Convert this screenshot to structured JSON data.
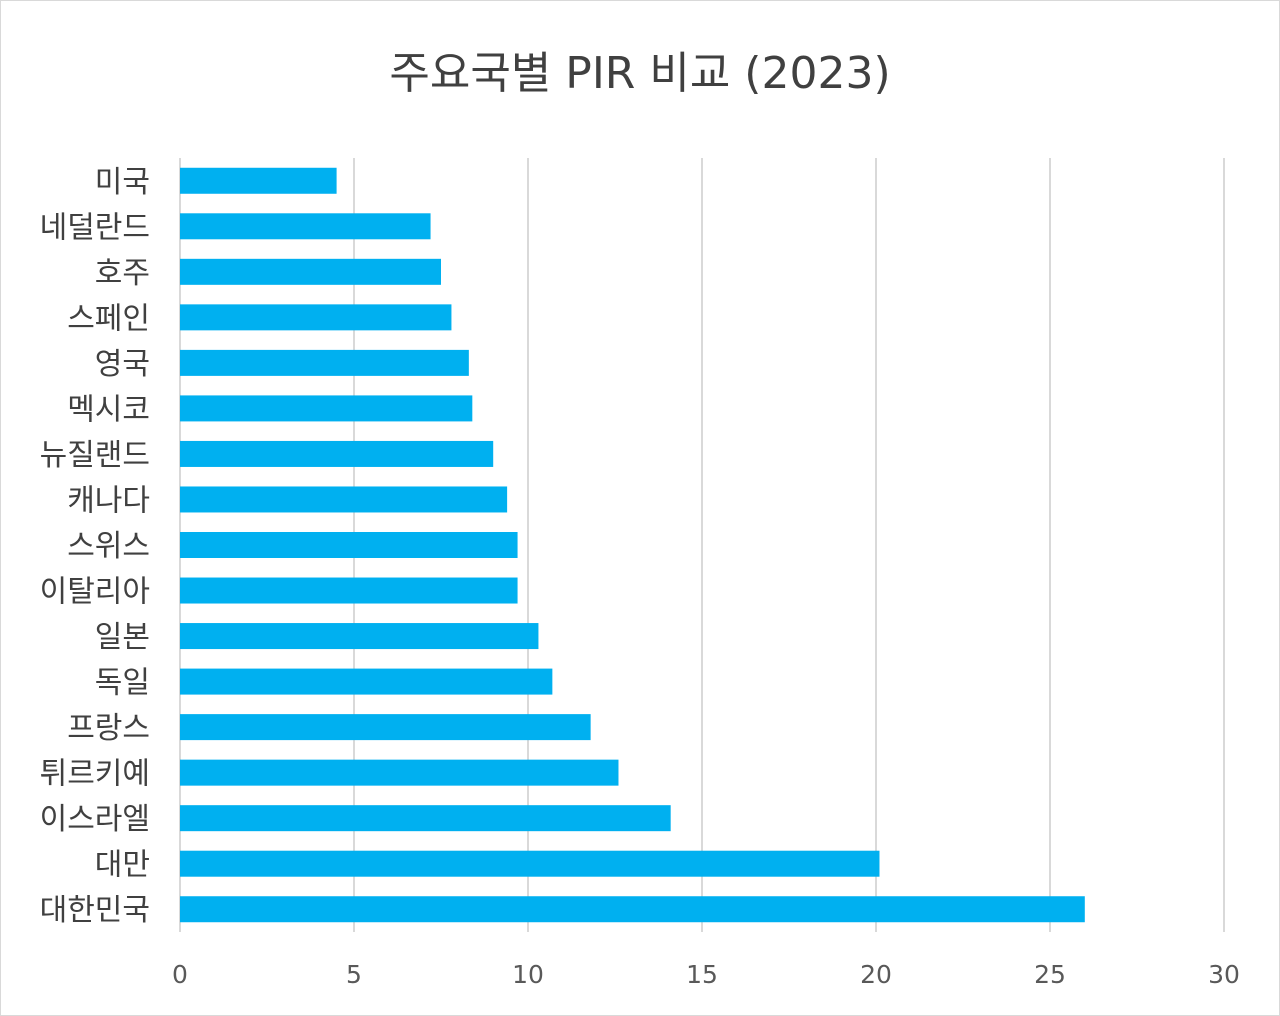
{
  "chart_data": {
    "type": "bar",
    "orientation": "horizontal",
    "title": "주요국별 PIR 비교 (2023)",
    "xlabel": "",
    "ylabel": "",
    "xlim": [
      0,
      30
    ],
    "x_ticks": [
      "0",
      "5",
      "10",
      "15",
      "20",
      "25",
      "30"
    ],
    "grid": "vertical",
    "legend": "none",
    "bar_color": "#00B0F0",
    "categories": [
      "미국",
      "네덜란드",
      "호주",
      "스페인",
      "영국",
      "멕시코",
      "뉴질랜드",
      "캐나다",
      "스위스",
      "이탈리아",
      "일본",
      "독일",
      "프랑스",
      "튀르키예",
      "이스라엘",
      "대만",
      "대한민국"
    ],
    "values": [
      4.5,
      7.2,
      7.5,
      7.8,
      8.3,
      8.4,
      9.0,
      9.4,
      9.7,
      9.7,
      10.3,
      10.7,
      11.8,
      12.6,
      14.1,
      20.1,
      26.0
    ]
  }
}
